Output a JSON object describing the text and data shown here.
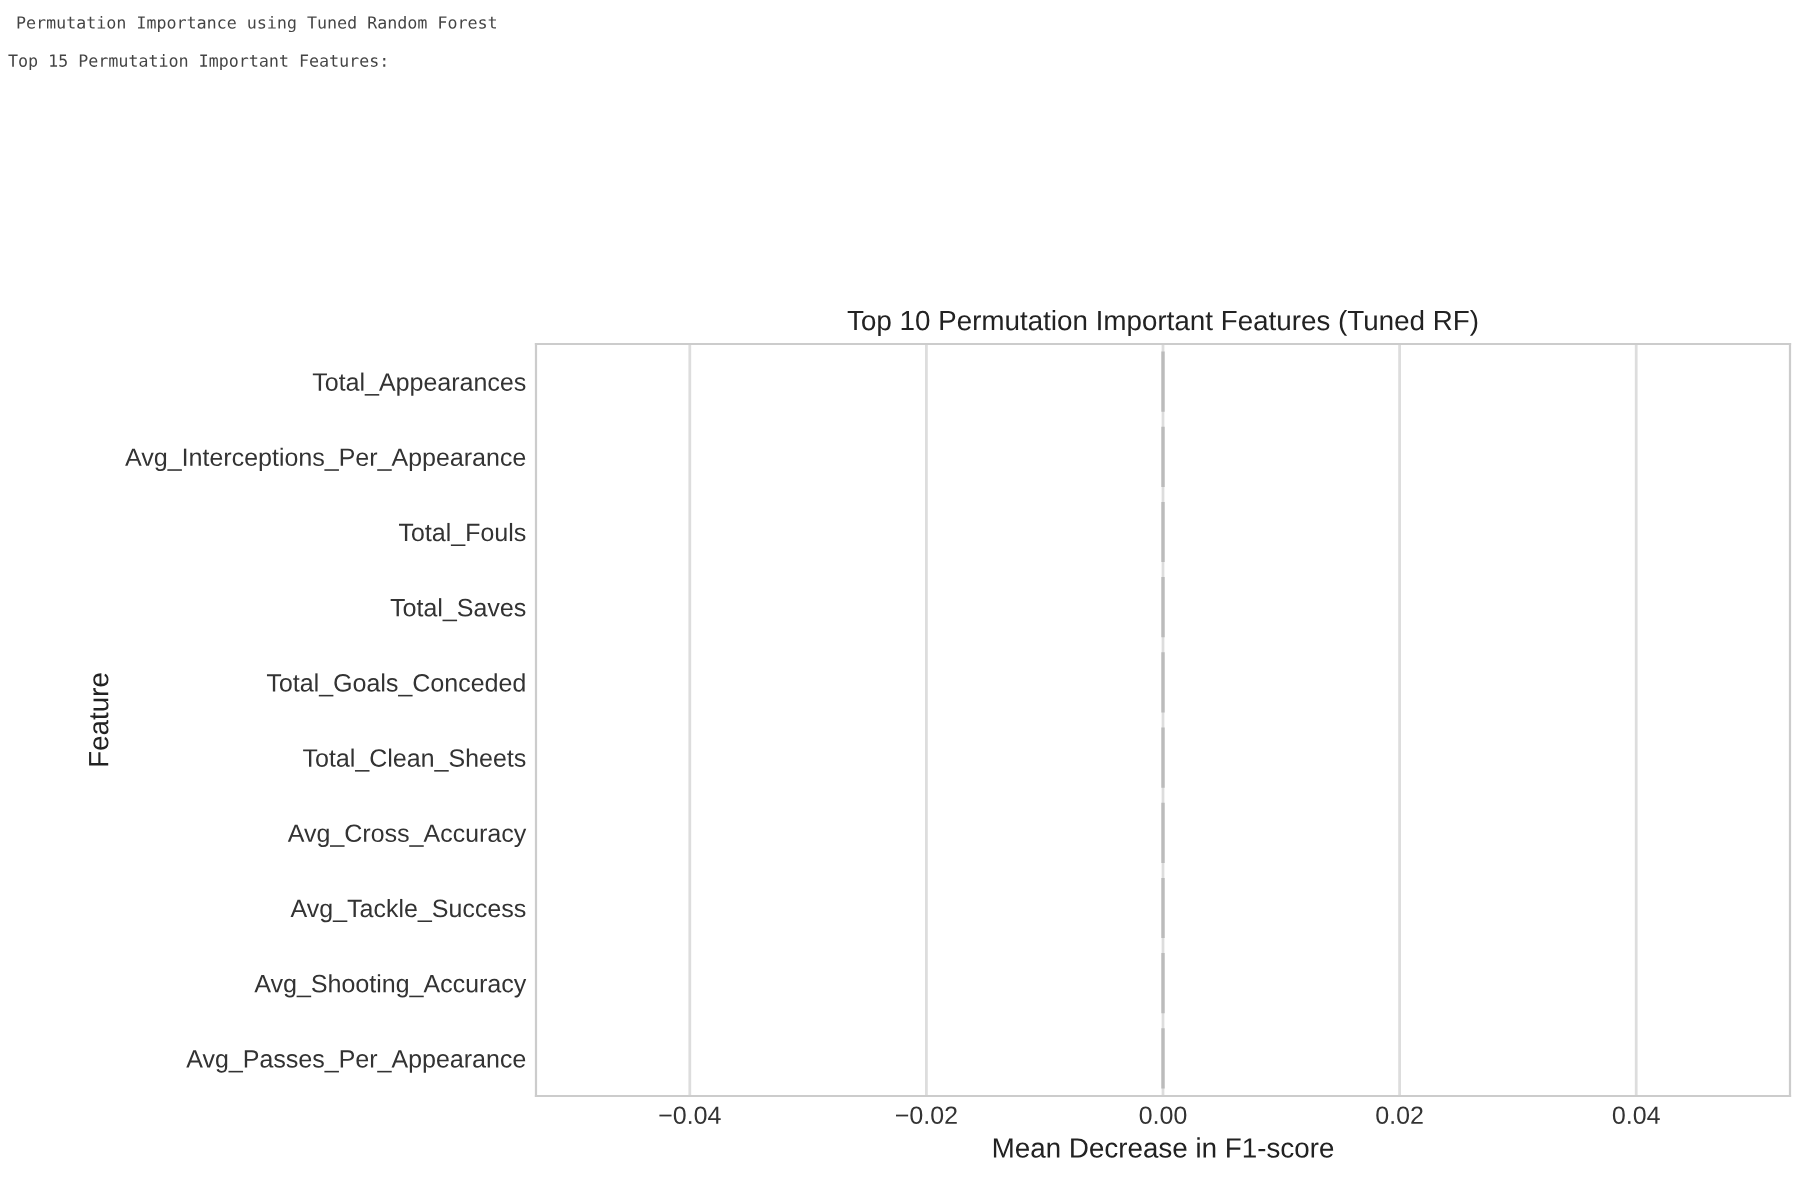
{
  "chart_data": {
    "type": "bar",
    "orientation": "horizontal",
    "title": "Top 10 Permutation Important Features (Tuned RF)",
    "xlabel": "Mean Decrease in F1-score",
    "ylabel": "Feature",
    "annotations": [
      "Permutation Importance using Tuned Random Forest",
      "Top 15 Permutation Important Features:"
    ],
    "categories": [
      "Total_Appearances",
      "Avg_Interceptions_Per_Appearance",
      "Total_Fouls",
      "Total_Saves",
      "Total_Goals_Conceded",
      "Total_Clean_Sheets",
      "Avg_Cross_Accuracy",
      "Avg_Tackle_Success",
      "Avg_Shooting_Accuracy",
      "Avg_Passes_Per_Appearance"
    ],
    "values": [
      0,
      0,
      0,
      0,
      0,
      0,
      0,
      0,
      0,
      0
    ],
    "color": "#bbbbbb",
    "xlim": [
      -0.053,
      0.053
    ],
    "xticks": [
      {
        "value": -0.04,
        "label": "−0.04"
      },
      {
        "value": -0.02,
        "label": "−0.02"
      },
      {
        "value": 0,
        "label": "0.00"
      },
      {
        "value": 0.02,
        "label": "0.02"
      },
      {
        "value": 0.04,
        "label": "0.04"
      }
    ],
    "grid": "x",
    "legend": false
  }
}
